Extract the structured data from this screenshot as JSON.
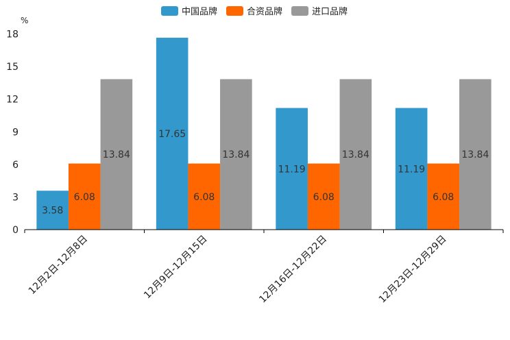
{
  "chart_data": {
    "type": "bar",
    "title": "",
    "xlabel": "",
    "ylabel": "%",
    "ylim": [
      0,
      18
    ],
    "yticks": [
      0,
      3,
      6,
      9,
      12,
      15,
      18
    ],
    "grid": false,
    "legend_position": "top-center",
    "categories": [
      "12月2日-12月8日",
      "12月9日-12月15日",
      "12月16日-12月22日",
      "12月23日-12月29日"
    ],
    "series": [
      {
        "name": "中国品牌",
        "color": "#3399CC",
        "values": [
          3.58,
          17.65,
          11.19,
          11.19
        ],
        "labels": [
          "3.58",
          "17.65",
          "11.19",
          "11.19"
        ]
      },
      {
        "name": "合资品牌",
        "color": "#FF6600",
        "values": [
          6.08,
          6.08,
          6.08,
          6.08
        ],
        "labels": [
          "6.08",
          "6.08",
          "6.08",
          "6.08"
        ]
      },
      {
        "name": "进口品牌",
        "color": "#999999",
        "values": [
          13.84,
          13.84,
          13.84,
          13.84
        ],
        "labels": [
          "13.84",
          "13.84",
          "13.84",
          "13.84"
        ]
      }
    ]
  }
}
